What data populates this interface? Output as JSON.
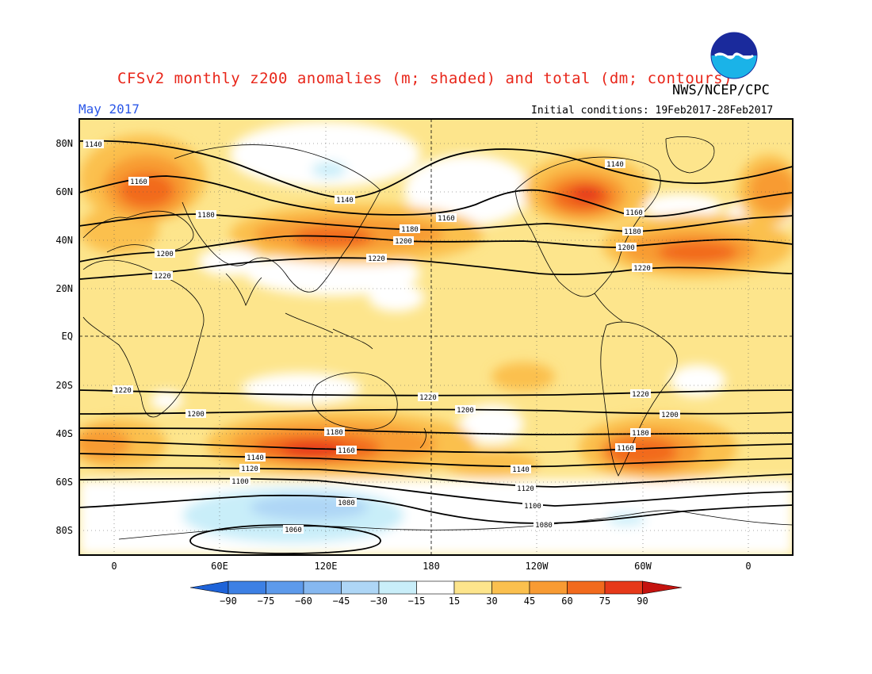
{
  "header": {
    "title": "CFSv2 monthly z200 anomalies (m; shaded) and total (dm; contours)",
    "agency": "NWS/NCEP/CPC",
    "period": "May 2017",
    "initial_conditions": "Initial conditions: 19Feb2017-28Feb2017",
    "logo_text": "NOAA"
  },
  "axes": {
    "lat_labels": [
      "80N",
      "60N",
      "40N",
      "20N",
      "EQ",
      "20S",
      "40S",
      "60S",
      "80S"
    ],
    "lon_labels": [
      "0",
      "60E",
      "120E",
      "180",
      "120W",
      "60W",
      "0"
    ]
  },
  "colorbar": {
    "ticks": [
      "-90",
      "-75",
      "-60",
      "-45",
      "-30",
      "-15",
      "15",
      "30",
      "45",
      "60",
      "75",
      "90"
    ],
    "colors": [
      "#1e63d8",
      "#3d80e4",
      "#5d9aeb",
      "#86b8f0",
      "#aed6f6",
      "#c9eef9",
      "#ffffff",
      "#fde58c",
      "#fbc04e",
      "#f89b33",
      "#f26a1d",
      "#e6391a",
      "#c4130f"
    ]
  },
  "contours": {
    "labels": [
      "1060",
      "1080",
      "1100",
      "1120",
      "1140",
      "1160",
      "1180",
      "1200",
      "1220"
    ],
    "line_color": "#000000"
  },
  "anomaly_colors": {
    "weak_positive": "#fde58c",
    "moderate_positive": "#fbc04e",
    "strong_positive": "#f89b33",
    "very_strong_positive": "#f26a1d",
    "extreme_positive": "#e6391a",
    "weak_negative": "#c9eef9",
    "moderate_negative": "#aed6f6",
    "neutral": "#ffffff"
  }
}
